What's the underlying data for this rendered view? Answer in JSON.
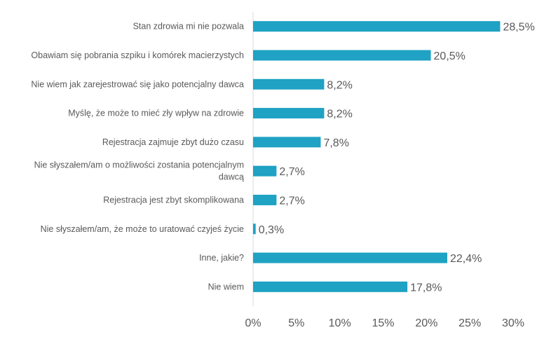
{
  "chart_data": {
    "type": "bar",
    "orientation": "horizontal",
    "title": "",
    "xlabel": "",
    "ylabel": "",
    "categories": [
      "Stan zdrowia mi nie pozwala",
      "Obawiam się pobrania szpiku i komórek macierzystych",
      "Nie wiem jak zarejestrować się jako potencjalny dawca",
      "Myślę, że może to mieć zły wpływ na zdrowie",
      "Rejestracja zajmuje zbyt dużo czasu",
      "Nie słyszałem/am o możliwości zostania potencjalnym dawcą",
      "Rejestracja jest zbyt skomplikowana",
      "Nie słyszałem/am, że może to uratować czyjeś życie",
      "Inne, jakie?",
      "Nie wiem"
    ],
    "category_lines": [
      [
        "Stan zdrowia mi nie pozwala"
      ],
      [
        "Obawiam się pobrania szpiku i komórek macierzystych"
      ],
      [
        "Nie wiem jak zarejestrować się jako potencjalny dawca"
      ],
      [
        "Myślę, że może to mieć zły wpływ na zdrowie"
      ],
      [
        "Rejestracja zajmuje zbyt dużo czasu"
      ],
      [
        "Nie słyszałem/am o możliwości zostania potencjalnym",
        "dawcą"
      ],
      [
        "Rejestracja jest zbyt skomplikowana"
      ],
      [
        "Nie słyszałem/am, że może to uratować czyjeś życie"
      ],
      [
        "Inne, jakie?"
      ],
      [
        "Nie wiem"
      ]
    ],
    "values": [
      28.5,
      20.5,
      8.2,
      8.2,
      7.8,
      2.7,
      2.7,
      0.3,
      22.4,
      17.8
    ],
    "value_labels": [
      "28,5%",
      "20,5%",
      "8,2%",
      "8,2%",
      "7,8%",
      "2,7%",
      "2,7%",
      "0,3%",
      "22,4%",
      "17,8%"
    ],
    "xlim": [
      0,
      30
    ],
    "xticks": [
      0,
      5,
      10,
      15,
      20,
      25,
      30
    ],
    "xtick_labels": [
      "0%",
      "5%",
      "10%",
      "15%",
      "20%",
      "25%",
      "30%"
    ],
    "grid": false,
    "legend": "none",
    "colors": {
      "bar": "#1fa2c3",
      "axis": "#d9d9d9",
      "text": "#595959"
    }
  }
}
